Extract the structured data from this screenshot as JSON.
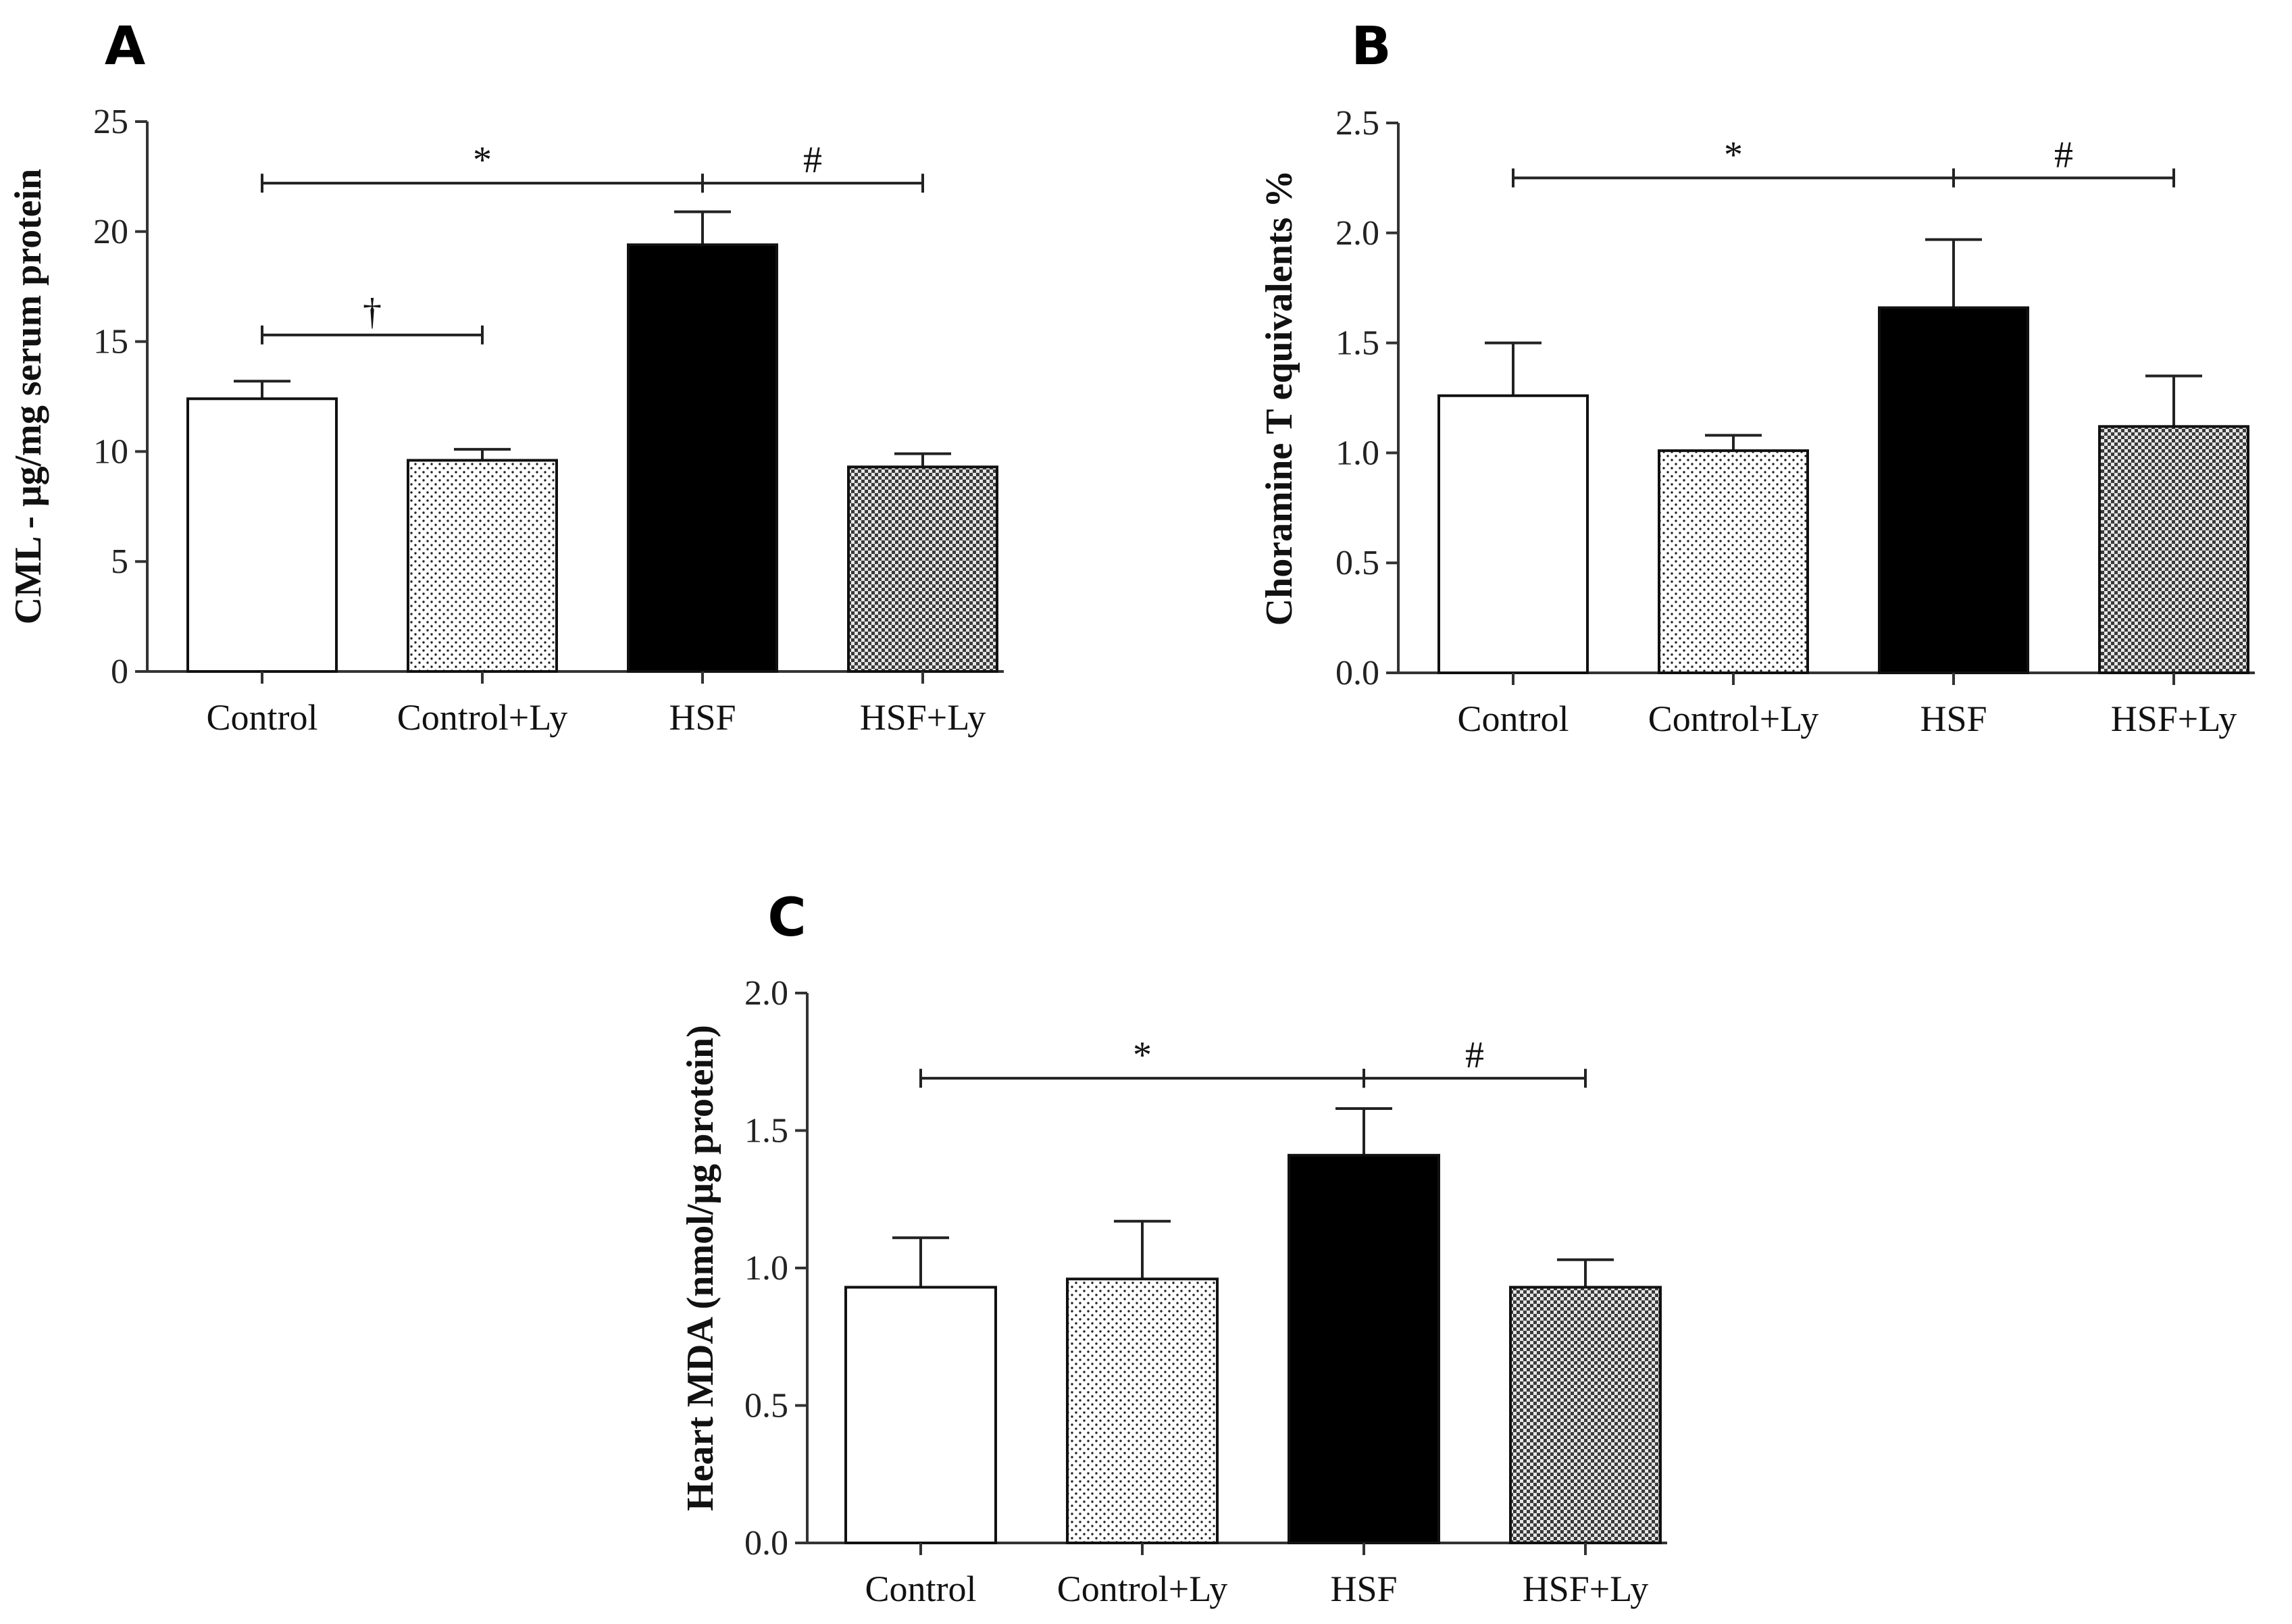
{
  "figure": {
    "patterns": {
      "Control": "white",
      "Control+Ly": "fine-dots",
      "HSF": "black",
      "HSF+Ly": "dense-checker"
    }
  },
  "chart_data": [
    {
      "panel": "A",
      "type": "bar",
      "title": "",
      "xlabel": "",
      "ylabel": "CML - μg/mg serum protein",
      "categories": [
        "Control",
        "Control+Ly",
        "HSF",
        "HSF+Ly"
      ],
      "values": [
        12.4,
        9.6,
        19.4,
        9.3
      ],
      "errors": [
        0.8,
        0.5,
        1.5,
        0.6
      ],
      "ylim": [
        0,
        25
      ],
      "yticks": [
        0,
        5,
        10,
        15,
        20,
        25
      ],
      "ytick_labels": [
        "0",
        "5",
        "10",
        "15",
        "20",
        "25"
      ],
      "significance": [
        {
          "from": 0,
          "to": 2,
          "label": "*",
          "y": 22.2
        },
        {
          "from": 2,
          "to": 3,
          "label": "#",
          "y": 22.2
        },
        {
          "from": 0,
          "to": 1,
          "label": "†",
          "y": 15.3
        }
      ]
    },
    {
      "panel": "B",
      "type": "bar",
      "title": "",
      "xlabel": "",
      "ylabel": "Choramine T equivalents %",
      "categories": [
        "Control",
        "Control+Ly",
        "HSF",
        "HSF+Ly"
      ],
      "values": [
        1.26,
        1.01,
        1.66,
        1.12
      ],
      "errors": [
        0.24,
        0.07,
        0.31,
        0.23
      ],
      "ylim": [
        0,
        2.5
      ],
      "yticks": [
        0,
        0.5,
        1.0,
        1.5,
        2.0,
        2.5
      ],
      "ytick_labels": [
        "0.0",
        "0.5",
        "1.0",
        "1.5",
        "2.0",
        "2.5"
      ],
      "significance": [
        {
          "from": 0,
          "to": 2,
          "label": "*",
          "y": 2.25
        },
        {
          "from": 2,
          "to": 3,
          "label": "#",
          "y": 2.25
        }
      ]
    },
    {
      "panel": "C",
      "type": "bar",
      "title": "",
      "xlabel": "",
      "ylabel": "Heart MDA (nmol/μg protein)",
      "categories": [
        "Control",
        "Control+Ly",
        "HSF",
        "HSF+Ly"
      ],
      "values": [
        0.93,
        0.96,
        1.41,
        0.93
      ],
      "errors": [
        0.18,
        0.21,
        0.17,
        0.1
      ],
      "ylim": [
        0,
        2.0
      ],
      "yticks": [
        0,
        0.5,
        1.0,
        1.5,
        2.0
      ],
      "ytick_labels": [
        "0.0",
        "0.5",
        "1.0",
        "1.5",
        "2.0"
      ],
      "significance": [
        {
          "from": 0,
          "to": 2,
          "label": "*",
          "y": 1.69
        },
        {
          "from": 2,
          "to": 3,
          "label": "#",
          "y": 1.69
        }
      ]
    }
  ]
}
